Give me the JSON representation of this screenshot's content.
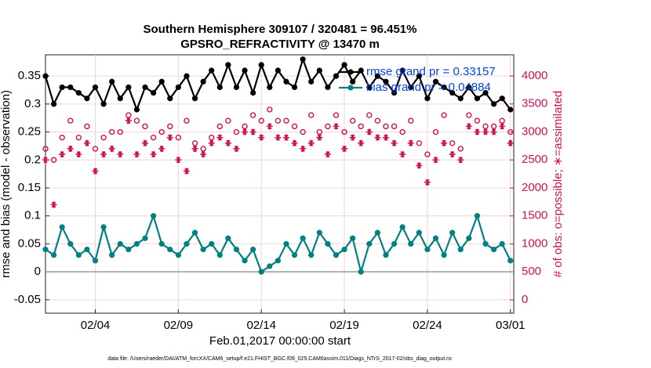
{
  "chart_data": {
    "type": "line",
    "title": "Southern Hemisphere 309107 / 320481 = 96.451%",
    "subtitle": "GPSRO_REFRACTIVITY @ 13470 m",
    "x_label": "Feb.01,2017 00:00:00 start",
    "y_label": "rmse and bias (model - observation)",
    "y2_label": "# of obs: o=possible; ∗=assimilated",
    "footnote": "data file: /Users/raeder/DAI/ATM_forcXX/CAM6_setup/f.e21.FHIST_BGC.f09_025.CAM6assim.011/Diags_NTrS_2017-02/obs_diag_output.nc",
    "grid": true,
    "zero_line": true,
    "xlim": [
      0,
      28.2
    ],
    "xticks": [
      {
        "value": 3,
        "label": "02/04"
      },
      {
        "value": 8,
        "label": "02/09"
      },
      {
        "value": 13,
        "label": "02/14"
      },
      {
        "value": 18,
        "label": "02/19"
      },
      {
        "value": 23,
        "label": "02/24"
      },
      {
        "value": 28,
        "label": "03/01"
      }
    ],
    "ylim": [
      -0.074,
      0.388
    ],
    "yticks": [
      -0.05,
      0,
      0.05,
      0.1,
      0.15,
      0.2,
      0.25,
      0.3,
      0.35
    ],
    "y2lim": [
      -238,
      4378
    ],
    "y2ticks": [
      0,
      500,
      1000,
      1500,
      2000,
      2500,
      3000,
      3500,
      4000
    ],
    "x": [
      0,
      0.5,
      1,
      1.5,
      2,
      2.5,
      3,
      3.5,
      4,
      4.5,
      5,
      5.5,
      6,
      6.5,
      7,
      7.5,
      8,
      8.5,
      9,
      9.5,
      10,
      10.5,
      11,
      11.5,
      12,
      12.5,
      13,
      13.5,
      14,
      14.5,
      15,
      15.5,
      16,
      16.5,
      17,
      17.5,
      18,
      18.5,
      19,
      19.5,
      20,
      20.5,
      21,
      21.5,
      22,
      22.5,
      23,
      23.5,
      24,
      24.5,
      25,
      25.5,
      26,
      26.5,
      27,
      27.5,
      28
    ],
    "series": [
      {
        "name": "rmse grand pr = 0.33157",
        "color": "#000000",
        "marker": "dot",
        "values": [
          0.35,
          0.3,
          0.33,
          0.33,
          0.32,
          0.31,
          0.33,
          0.3,
          0.34,
          0.31,
          0.33,
          0.29,
          0.33,
          0.32,
          0.34,
          0.31,
          0.33,
          0.35,
          0.31,
          0.34,
          0.36,
          0.33,
          0.37,
          0.33,
          0.36,
          0.32,
          0.37,
          0.33,
          0.36,
          0.34,
          0.33,
          0.38,
          0.34,
          0.36,
          0.33,
          0.35,
          0.37,
          0.34,
          0.36,
          0.33,
          0.35,
          0.34,
          0.32,
          0.36,
          0.33,
          0.35,
          0.31,
          0.34,
          0.33,
          0.32,
          0.31,
          0.33,
          0.31,
          0.32,
          0.3,
          0.31,
          0.29
        ]
      },
      {
        "name": "bias grand pr = 0.04884",
        "color": "#008080",
        "marker": "dot",
        "values": [
          0.04,
          0.03,
          0.08,
          0.05,
          0.03,
          0.04,
          0.02,
          0.08,
          0.03,
          0.05,
          0.04,
          0.05,
          0.06,
          0.1,
          0.05,
          0.04,
          0.03,
          0.05,
          0.07,
          0.04,
          0.05,
          0.03,
          0.06,
          0.04,
          0.02,
          0.04,
          0.0,
          0.01,
          0.02,
          0.05,
          0.03,
          0.06,
          0.03,
          0.07,
          0.05,
          0.03,
          0.04,
          0.06,
          0.0,
          0.05,
          0.07,
          0.03,
          0.05,
          0.08,
          0.05,
          0.07,
          0.04,
          0.06,
          0.03,
          0.07,
          0.04,
          0.06,
          0.1,
          0.05,
          0.04,
          0.05,
          0.02
        ]
      },
      {
        "color": "#cc1155",
        "axis": "y2",
        "marker": "circle",
        "values": [
          2700,
          2500,
          2900,
          3200,
          2900,
          3100,
          2700,
          2900,
          3000,
          3000,
          3300,
          3200,
          3100,
          2900,
          3000,
          3100,
          2900,
          3200,
          2800,
          2700,
          2900,
          3100,
          3200,
          3000,
          3100,
          3300,
          3200,
          3400,
          3200,
          3200,
          3100,
          3000,
          3300,
          3000,
          3100,
          3300,
          3000,
          3200,
          3100,
          3300,
          3200,
          3100,
          3100,
          3000,
          3200,
          2800,
          2600,
          3000,
          3300,
          2800,
          2700,
          3300,
          3200,
          3100,
          3100,
          3200,
          3000
        ]
      },
      {
        "color": "#cc1155",
        "axis": "y2",
        "marker": "star",
        "values": [
          2500,
          1700,
          2600,
          2700,
          2600,
          2800,
          2300,
          2600,
          2700,
          2600,
          3200,
          2600,
          2800,
          2600,
          2700,
          2900,
          2500,
          2300,
          2700,
          2600,
          2800,
          2900,
          2800,
          2700,
          3000,
          3000,
          2900,
          3100,
          2900,
          2900,
          2800,
          2700,
          2800,
          2900,
          2600,
          3100,
          2700,
          2900,
          2800,
          3000,
          2900,
          2900,
          2800,
          2600,
          2800,
          2400,
          2100,
          2500,
          2800,
          2600,
          2500,
          3100,
          3000,
          3000,
          3000,
          3100,
          2800
        ]
      }
    ]
  }
}
